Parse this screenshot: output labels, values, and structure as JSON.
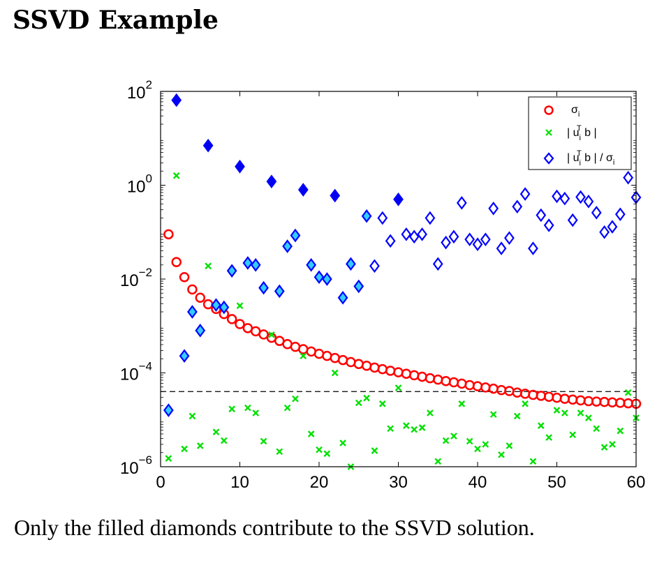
{
  "title": "SSVD Example",
  "caption": "Only the filled diamonds contribute to the SSVD solution.",
  "chart_data": {
    "type": "scatter",
    "title": "",
    "xlabel": "",
    "ylabel": "",
    "xlim": [
      0,
      60
    ],
    "ylim": [
      1e-06,
      100.0
    ],
    "yscale": "log",
    "grid": false,
    "legend_position": "top-right",
    "x_ticks": [
      "0",
      "10",
      "20",
      "30",
      "40",
      "50",
      "60"
    ],
    "y_ticks": [
      {
        "base": "10",
        "exp": "−6",
        "value": 1e-06
      },
      {
        "base": "10",
        "exp": "−4",
        "value": 0.0001
      },
      {
        "base": "10",
        "exp": "−2",
        "value": 0.01
      },
      {
        "base": "10",
        "exp": "0",
        "value": 1
      },
      {
        "base": "10",
        "exp": "2",
        "value": 100
      }
    ],
    "threshold_line": {
      "y": 4e-05,
      "style": "dashed",
      "color": "#000000"
    },
    "legend": {
      "sigma": {
        "label": "σ",
        "sub": "i"
      },
      "utb": {
        "p1": "| u",
        "sub": "i",
        "sup": "T",
        "p2": " b |"
      },
      "ratio": {
        "p1": "| u",
        "sub": "i",
        "sup": "T",
        "p2": " b | / σ",
        "sub2": "i"
      }
    },
    "colors": {
      "sigma": "#ff0000",
      "utb": "#00e000",
      "ratio_edge": "#0000ff",
      "ratio_filled": "#0000ee",
      "ratio_open_fill": "#33ccff"
    },
    "series": [
      {
        "key": "sigma",
        "marker": "circle",
        "x": [
          1,
          2,
          3,
          4,
          5,
          6,
          7,
          8,
          9,
          10,
          11,
          12,
          13,
          14,
          15,
          16,
          17,
          18,
          19,
          20,
          21,
          22,
          23,
          24,
          25,
          26,
          27,
          28,
          29,
          30,
          31,
          32,
          33,
          34,
          35,
          36,
          37,
          38,
          39,
          40,
          41,
          42,
          43,
          44,
          45,
          46,
          47,
          48,
          49,
          50,
          51,
          52,
          53,
          54,
          55,
          56,
          57,
          58,
          59,
          60
        ],
        "y": [
          0.09,
          0.023,
          0.011,
          0.006,
          0.004,
          0.0029,
          0.0023,
          0.0018,
          0.0014,
          0.0011,
          0.0009,
          0.00077,
          0.00066,
          0.00056,
          0.00048,
          0.00041,
          0.00036,
          0.00032,
          0.000285,
          0.000255,
          0.00023,
          0.000208,
          0.000188,
          0.00017,
          0.000155,
          0.000142,
          0.00013,
          0.00012,
          0.000111,
          0.000103,
          9.6e-05,
          8.9e-05,
          8.3e-05,
          7.7e-05,
          7.2e-05,
          6.7e-05,
          6.3e-05,
          5.9e-05,
          5.5e-05,
          5.2e-05,
          4.9e-05,
          4.6e-05,
          4.3e-05,
          4.1e-05,
          3.8e-05,
          3.6e-05,
          3.4e-05,
          3.25e-05,
          3.1e-05,
          2.95e-05,
          2.8e-05,
          2.7e-05,
          2.6e-05,
          2.5e-05,
          2.45e-05,
          2.4e-05,
          2.35e-05,
          2.3e-05,
          2.25e-05,
          2.2e-05
        ]
      },
      {
        "key": "utb",
        "marker": "x",
        "x": [
          1,
          2,
          3,
          4,
          5,
          6,
          7,
          8,
          9,
          10,
          11,
          12,
          13,
          14,
          15,
          16,
          17,
          18,
          19,
          20,
          21,
          22,
          23,
          24,
          25,
          26,
          27,
          28,
          29,
          30,
          31,
          32,
          33,
          34,
          35,
          36,
          37,
          38,
          39,
          40,
          41,
          42,
          43,
          44,
          45,
          46,
          47,
          48,
          49,
          50,
          51,
          52,
          53,
          54,
          55,
          56,
          57,
          58,
          59,
          60
        ],
        "y": [
          1.5e-06,
          1.6,
          2.4e-06,
          1.2e-05,
          2.8e-06,
          0.019,
          5.5e-06,
          3.6e-06,
          1.7e-05,
          0.0027,
          1.8e-05,
          1.4e-05,
          3.5e-06,
          0.00065,
          2.1e-06,
          1.8e-05,
          2.8e-05,
          0.00023,
          5e-06,
          2.3e-06,
          1.9e-06,
          0.0001,
          3.2e-06,
          1e-06,
          2.3e-05,
          2.9e-05,
          2.2e-06,
          2.2e-05,
          6.5e-06,
          4.8e-05,
          7.5e-06,
          6.2e-06,
          6.8e-06,
          1.4e-05,
          1.3e-06,
          3.6e-06,
          4.5e-06,
          2.2e-05,
          3.5e-06,
          2.4e-06,
          3e-06,
          1.3e-05,
          1.8e-06,
          2.8e-06,
          1.2e-05,
          2.2e-05,
          1.3e-06,
          7.5e-06,
          4.2e-06,
          1.6e-05,
          1.4e-05,
          4.8e-06,
          1.4e-05,
          1.1e-05,
          6.5e-06,
          2.6e-06,
          3e-06,
          5.8e-06,
          3.8e-05,
          1.1e-05
        ]
      },
      {
        "key": "ratio",
        "marker": "diamond",
        "x": [
          1,
          2,
          3,
          4,
          5,
          6,
          7,
          8,
          9,
          10,
          11,
          12,
          13,
          14,
          15,
          16,
          17,
          18,
          19,
          20,
          21,
          22,
          23,
          24,
          25,
          26,
          27,
          28,
          29,
          30,
          31,
          32,
          33,
          34,
          35,
          36,
          37,
          38,
          39,
          40,
          41,
          42,
          43,
          44,
          45,
          46,
          47,
          48,
          49,
          50,
          51,
          52,
          53,
          54,
          55,
          56,
          57,
          58,
          59,
          60
        ],
        "y": [
          1.6e-05,
          65,
          0.00023,
          0.002,
          0.0008,
          7,
          0.0028,
          0.0025,
          0.015,
          2.5,
          0.022,
          0.02,
          0.0065,
          1.2,
          0.0055,
          0.05,
          0.085,
          0.8,
          0.02,
          0.011,
          0.01,
          0.6,
          0.004,
          0.021,
          0.007,
          0.22,
          0.019,
          0.2,
          0.065,
          0.5,
          0.09,
          0.08,
          0.09,
          0.2,
          0.021,
          0.06,
          0.08,
          0.42,
          0.07,
          0.055,
          0.07,
          0.32,
          0.045,
          0.075,
          0.35,
          0.65,
          0.045,
          0.23,
          0.14,
          0.58,
          0.52,
          0.18,
          0.56,
          0.45,
          0.26,
          0.1,
          0.13,
          0.24,
          1.45,
          0.55
        ],
        "filled": [
          false,
          true,
          false,
          false,
          false,
          true,
          false,
          false,
          false,
          true,
          false,
          false,
          false,
          true,
          false,
          false,
          false,
          true,
          false,
          false,
          false,
          true,
          false,
          false,
          false,
          false,
          false,
          false,
          false,
          true,
          false,
          false,
          false,
          false,
          false,
          false,
          false,
          false,
          false,
          false,
          false,
          false,
          false,
          false,
          false,
          false,
          false,
          false,
          false,
          false,
          false,
          false,
          false,
          false,
          false,
          false,
          false,
          false,
          false,
          false
        ],
        "highlighted": [
          true,
          false,
          true,
          true,
          true,
          false,
          true,
          true,
          true,
          false,
          true,
          true,
          true,
          false,
          true,
          true,
          true,
          false,
          true,
          true,
          true,
          false,
          true,
          true,
          true,
          true,
          false,
          false,
          false,
          false,
          false,
          false,
          false,
          false,
          false,
          false,
          false,
          false,
          false,
          false,
          false,
          false,
          false,
          false,
          false,
          false,
          false,
          false,
          false,
          false,
          false,
          false,
          false,
          false,
          false,
          false,
          false,
          false,
          false,
          false
        ]
      }
    ]
  }
}
